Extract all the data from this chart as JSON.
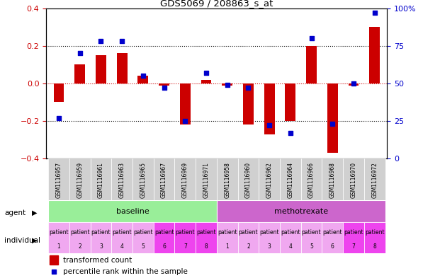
{
  "title": "GDS5069 / 208863_s_at",
  "samples": [
    "GSM1116957",
    "GSM1116959",
    "GSM1116961",
    "GSM1116963",
    "GSM1116965",
    "GSM1116967",
    "GSM1116969",
    "GSM1116971",
    "GSM1116958",
    "GSM1116960",
    "GSM1116962",
    "GSM1116964",
    "GSM1116966",
    "GSM1116968",
    "GSM1116970",
    "GSM1116972"
  ],
  "bar_values": [
    -0.1,
    0.1,
    0.15,
    0.16,
    0.04,
    -0.01,
    -0.22,
    0.02,
    -0.01,
    -0.22,
    -0.27,
    -0.2,
    0.2,
    -0.37,
    -0.01,
    0.3
  ],
  "dot_values": [
    27,
    70,
    78,
    78,
    55,
    47,
    25,
    57,
    49,
    47,
    22,
    17,
    80,
    23,
    50,
    97
  ],
  "ylim_left": [
    -0.4,
    0.4
  ],
  "ylim_right": [
    0,
    100
  ],
  "yticks_left": [
    -0.4,
    -0.2,
    0,
    0.2,
    0.4
  ],
  "yticks_right": [
    0,
    25,
    50,
    75,
    100
  ],
  "bar_color": "#cc0000",
  "dot_color": "#0000cc",
  "agent_groups": [
    {
      "label": "baseline",
      "start": 0,
      "end": 8,
      "color": "#99ee99"
    },
    {
      "label": "methotrexate",
      "start": 8,
      "end": 16,
      "color": "#cc66cc"
    }
  ],
  "individual_labels": [
    "patient\n1",
    "patient\n2",
    "patient\n3",
    "patient\n4",
    "patient\n5",
    "patient\n6",
    "patient\n7",
    "patient\n8",
    "patient\n1",
    "patient\n2",
    "patient\n3",
    "patient\n4",
    "patient\n5",
    "patient\n6",
    "patient\n7",
    "patient\n8"
  ],
  "individual_colors": [
    "#f0a8f0",
    "#f0a8f0",
    "#f0a8f0",
    "#f0a8f0",
    "#f0a8f0",
    "#ee44ee",
    "#ee44ee",
    "#ee44ee",
    "#f0a8f0",
    "#f0a8f0",
    "#f0a8f0",
    "#f0a8f0",
    "#f0a8f0",
    "#f0a8f0",
    "#ee44ee",
    "#ee44ee"
  ],
  "legend_bar_label": "transformed count",
  "legend_dot_label": "percentile rank within the sample",
  "agent_label": "agent",
  "individual_label": "individual",
  "sample_bg_color": "#d0d0d0",
  "bar_width": 0.5
}
